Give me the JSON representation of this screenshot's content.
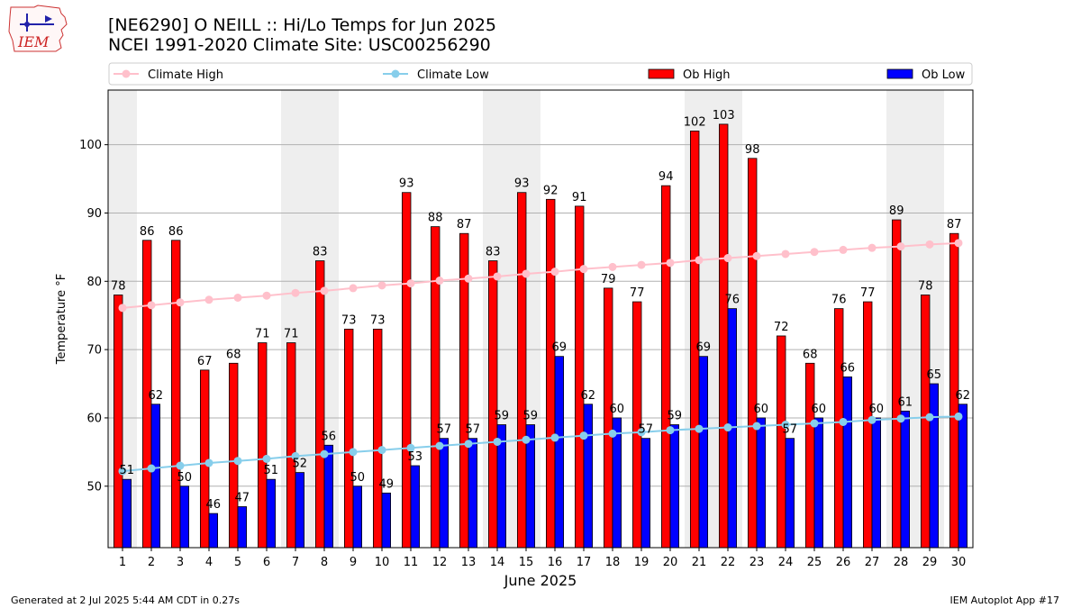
{
  "header": {
    "title_line1": "[NE6290] O NEILL :: Hi/Lo Temps for Jun 2025",
    "title_line2": "NCEI 1991-2020 Climate Site: USC00256290",
    "logo_text": "IEM"
  },
  "footer": {
    "left": "Generated at 2 Jul 2025 5:44 AM CDT in 0.27s",
    "right": "IEM Autoplot App #17"
  },
  "colors": {
    "ob_high": "#ff0000",
    "ob_low": "#0000ff",
    "climate_high": "#ffc0cb",
    "climate_low": "#87ceeb",
    "weekend_band": "#eeeeee"
  },
  "chart_data": {
    "type": "bar",
    "xlabel": "June 2025",
    "ylabel": "Temperature °F",
    "ylim": [
      41,
      108
    ],
    "yticks": [
      50,
      60,
      70,
      80,
      90,
      100
    ],
    "grid": "horizontal",
    "legend_position": "top",
    "categories": [
      1,
      2,
      3,
      4,
      5,
      6,
      7,
      8,
      9,
      10,
      11,
      12,
      13,
      14,
      15,
      16,
      17,
      18,
      19,
      20,
      21,
      22,
      23,
      24,
      25,
      26,
      27,
      28,
      29,
      30
    ],
    "shaded_days": [
      1,
      7,
      8,
      14,
      15,
      21,
      22,
      28,
      29
    ],
    "series": [
      {
        "name": "Ob High",
        "kind": "bar",
        "values": [
          78,
          86,
          86,
          67,
          68,
          71,
          71,
          83,
          73,
          73,
          93,
          88,
          87,
          83,
          93,
          92,
          91,
          79,
          77,
          94,
          102,
          103,
          98,
          72,
          68,
          76,
          77,
          89,
          78,
          87
        ]
      },
      {
        "name": "Ob Low",
        "kind": "bar",
        "values": [
          51,
          62,
          50,
          46,
          47,
          51,
          52,
          56,
          50,
          49,
          53,
          57,
          57,
          59,
          59,
          69,
          62,
          60,
          57,
          59,
          69,
          76,
          60,
          57,
          60,
          66,
          60,
          61,
          65,
          62
        ]
      },
      {
        "name": "Climate High",
        "kind": "line",
        "values": [
          76.1,
          76.5,
          76.9,
          77.3,
          77.6,
          77.9,
          78.3,
          78.6,
          79.0,
          79.4,
          79.7,
          80.1,
          80.4,
          80.7,
          81.1,
          81.4,
          81.8,
          82.1,
          82.4,
          82.7,
          83.1,
          83.4,
          83.7,
          84.0,
          84.3,
          84.6,
          84.9,
          85.1,
          85.4,
          85.6
        ]
      },
      {
        "name": "Climate Low",
        "kind": "line",
        "values": [
          52.2,
          52.6,
          53.0,
          53.4,
          53.7,
          54.0,
          54.4,
          54.7,
          55.0,
          55.3,
          55.6,
          55.9,
          56.2,
          56.5,
          56.8,
          57.1,
          57.4,
          57.7,
          57.9,
          58.2,
          58.4,
          58.6,
          58.8,
          59.0,
          59.2,
          59.4,
          59.7,
          59.9,
          60.1,
          60.2
        ]
      }
    ]
  }
}
